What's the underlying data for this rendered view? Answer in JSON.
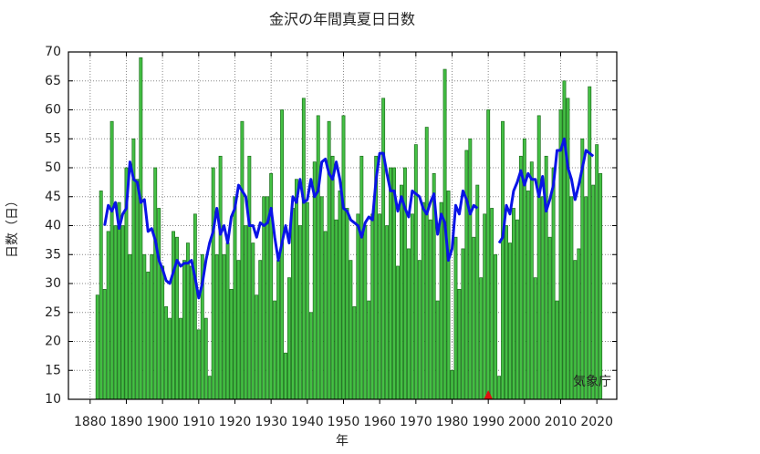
{
  "chart_data": {
    "type": "bar",
    "title": "金沢の年間真夏日日数",
    "x_label": "年",
    "y_label": "日数（日）",
    "annotation": "気象庁",
    "x": [
      1882,
      1883,
      1884,
      1885,
      1886,
      1887,
      1888,
      1889,
      1890,
      1891,
      1892,
      1893,
      1894,
      1895,
      1896,
      1897,
      1898,
      1899,
      1900,
      1901,
      1902,
      1903,
      1904,
      1905,
      1906,
      1907,
      1908,
      1909,
      1910,
      1911,
      1912,
      1913,
      1914,
      1915,
      1916,
      1917,
      1918,
      1919,
      1920,
      1921,
      1922,
      1923,
      1924,
      1925,
      1926,
      1927,
      1928,
      1929,
      1930,
      1931,
      1932,
      1933,
      1934,
      1935,
      1936,
      1937,
      1938,
      1939,
      1940,
      1941,
      1942,
      1943,
      1944,
      1945,
      1946,
      1947,
      1948,
      1949,
      1950,
      1951,
      1952,
      1953,
      1954,
      1955,
      1956,
      1957,
      1958,
      1959,
      1960,
      1961,
      1962,
      1963,
      1964,
      1965,
      1966,
      1967,
      1968,
      1969,
      1970,
      1971,
      1972,
      1973,
      1974,
      1975,
      1976,
      1977,
      1978,
      1979,
      1980,
      1981,
      1982,
      1983,
      1984,
      1985,
      1986,
      1987,
      1988,
      1989,
      1990,
      1991,
      1992,
      1993,
      1994,
      1995,
      1996,
      1997,
      1998,
      1999,
      2000,
      2001,
      2002,
      2003,
      2004,
      2005,
      2006,
      2007,
      2008,
      2009,
      2010,
      2011,
      2012,
      2013,
      2014,
      2015,
      2016,
      2017,
      2018,
      2019,
      2020,
      2021
    ],
    "series": [
      {
        "type": "bar",
        "color": "#44c044",
        "stroke": "#1d6e1d",
        "values": [
          28,
          46,
          29,
          39,
          58,
          40,
          44,
          40,
          50,
          35,
          55,
          48,
          69,
          35,
          32,
          35,
          50,
          43,
          33,
          26,
          24,
          39,
          38,
          24,
          34,
          37,
          33,
          42,
          22,
          35,
          24,
          14,
          50,
          35,
          52,
          35,
          37,
          29,
          45,
          34,
          58,
          40,
          52,
          37,
          28,
          34,
          45,
          45,
          49,
          27,
          34,
          60,
          18,
          31,
          43,
          48,
          40,
          62,
          44,
          25,
          51,
          59,
          45,
          39,
          58,
          52,
          41,
          46,
          59,
          43,
          34,
          26,
          42,
          52,
          40,
          27,
          42,
          52,
          42,
          62,
          40,
          50,
          50,
          33,
          47,
          50,
          36,
          42,
          54,
          34,
          44,
          57,
          41,
          49,
          27,
          44,
          67,
          46,
          15,
          38,
          29,
          36,
          53,
          55,
          38,
          47,
          31,
          42,
          60,
          43,
          35,
          14,
          58,
          40,
          37,
          43,
          41,
          52,
          55,
          46,
          51,
          31,
          59,
          45,
          52,
          38,
          50,
          27,
          60,
          65,
          62,
          45,
          34,
          36,
          55,
          45,
          64,
          47,
          54,
          49
        ]
      },
      {
        "type": "line",
        "color": "#0a14e6",
        "values": [
          null,
          null,
          40,
          43.5,
          42.5,
          44,
          39.5,
          42,
          43,
          51,
          48,
          47.5,
          44,
          44.5,
          39,
          39.5,
          37.5,
          34,
          32.5,
          30.5,
          30,
          32,
          34,
          33,
          33.5,
          33.5,
          34,
          31,
          27.5,
          30,
          34,
          37,
          39,
          43,
          38.5,
          40,
          37,
          41.5,
          43,
          47,
          46,
          45,
          40,
          40,
          38,
          40.5,
          40,
          40.5,
          43,
          38,
          34,
          37,
          40,
          37,
          45,
          44,
          48,
          44,
          44.5,
          48,
          45,
          46,
          51,
          51.5,
          49,
          48,
          51,
          48,
          43,
          42.5,
          41,
          40.5,
          40,
          38,
          40.5,
          41.5,
          41,
          48,
          52.5,
          52.5,
          49,
          46,
          46,
          42.5,
          45,
          43,
          41.5,
          46,
          45.5,
          45,
          43,
          42,
          44,
          45.5,
          38.5,
          42,
          40.5,
          34,
          36,
          43.5,
          42,
          46,
          44.5,
          42,
          43.5,
          43,
          null,
          null,
          null,
          null,
          null,
          37,
          38,
          43.5,
          42,
          46,
          47.5,
          49.5,
          47,
          49,
          48,
          48,
          45,
          48.5,
          42.5,
          44.5,
          47,
          53,
          53,
          55,
          50,
          48,
          44.5,
          47,
          50,
          53,
          52.5,
          52,
          null,
          null
        ]
      }
    ],
    "markers": [
      1990
    ],
    "marker_color": "#e01010",
    "xlim": [
      1874,
      2025.5
    ],
    "ylim": [
      10,
      70
    ],
    "xticks": [
      1880,
      1890,
      1900,
      1910,
      1920,
      1930,
      1940,
      1950,
      1960,
      1970,
      1980,
      1990,
      2000,
      2010,
      2020
    ],
    "yticks": [
      10,
      15,
      20,
      25,
      30,
      35,
      40,
      45,
      50,
      55,
      60,
      65,
      70
    ],
    "grid": true
  }
}
